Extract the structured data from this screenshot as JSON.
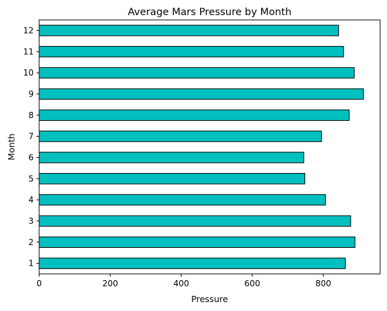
{
  "chart_data": {
    "type": "bar",
    "orientation": "horizontal",
    "title": "Average Mars Pressure by Month",
    "xlabel": "Pressure",
    "ylabel": "Month",
    "categories": [
      "1",
      "2",
      "3",
      "4",
      "5",
      "6",
      "7",
      "8",
      "9",
      "10",
      "11",
      "12"
    ],
    "values": [
      862,
      889,
      877,
      806,
      748,
      745,
      795,
      873,
      913,
      887,
      857,
      843
    ],
    "xlim": [
      0,
      960
    ],
    "xticks": [
      0,
      200,
      400,
      600,
      800
    ],
    "grid": false,
    "bar_color": "#00BFBF",
    "edge_color": "#000000"
  }
}
